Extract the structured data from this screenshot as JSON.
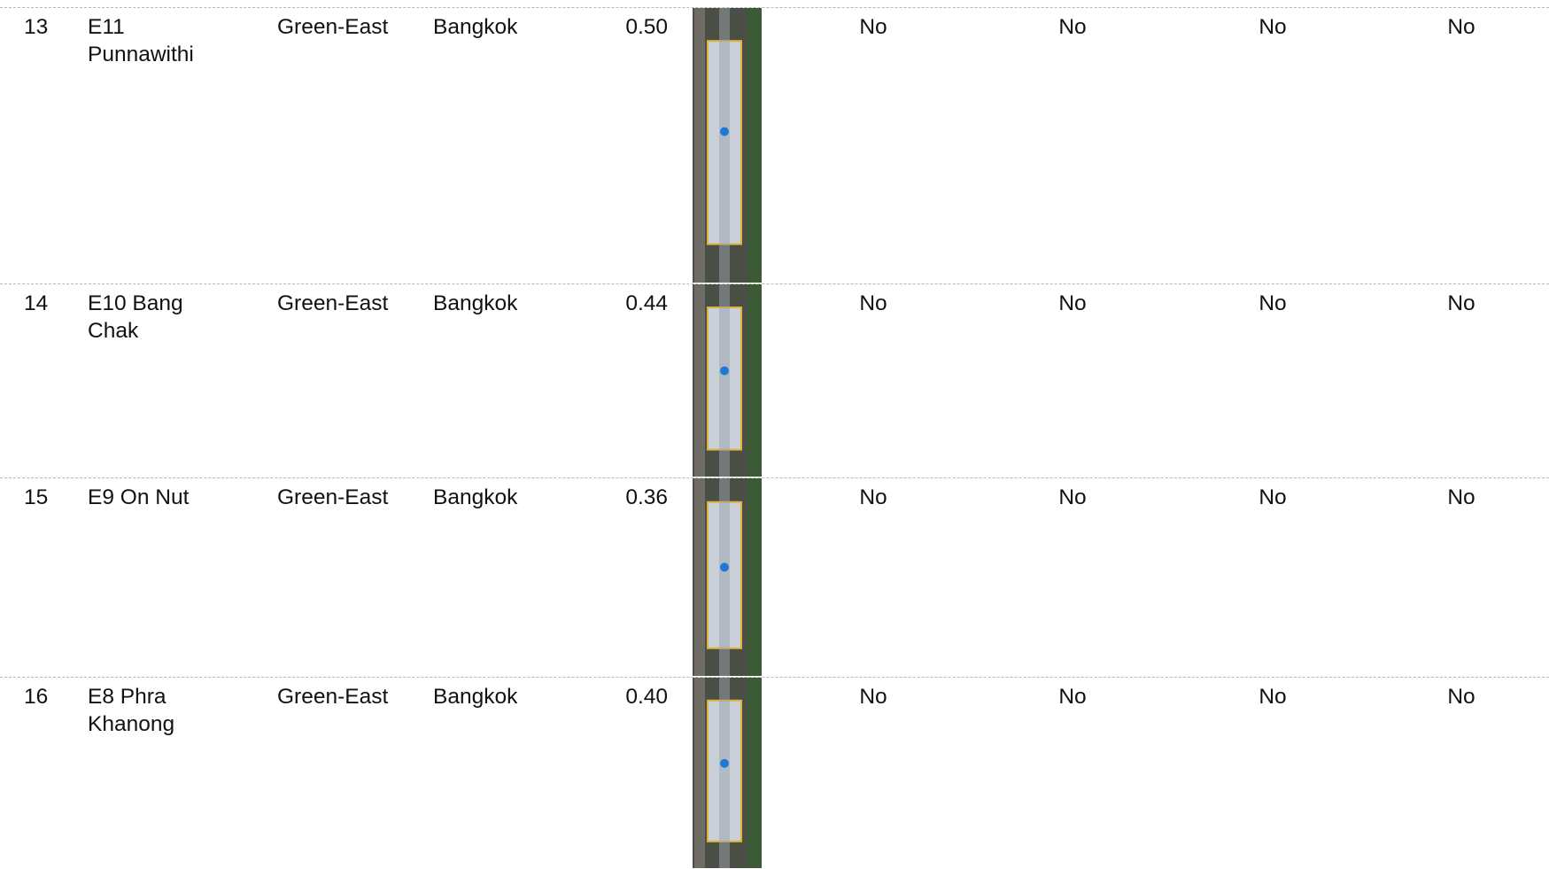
{
  "table": {
    "rows": [
      [
        "13",
        "E11 Punnawithi",
        "Green-East",
        "Bangkok",
        "0.50",
        "No",
        "No",
        "No",
        "No"
      ],
      [
        "14",
        "E10 Bang Chak",
        "Green-East",
        "Bangkok",
        "0.44",
        "No",
        "No",
        "No",
        "No"
      ],
      [
        "15",
        "E9 On Nut",
        "Green-East",
        "Bangkok",
        "0.36",
        "No",
        "No",
        "No",
        "No"
      ],
      [
        "16",
        "E8 Phra Khanong",
        "Green-East",
        "Bangkok",
        "0.40",
        "No",
        "No",
        "No",
        "No"
      ]
    ]
  }
}
